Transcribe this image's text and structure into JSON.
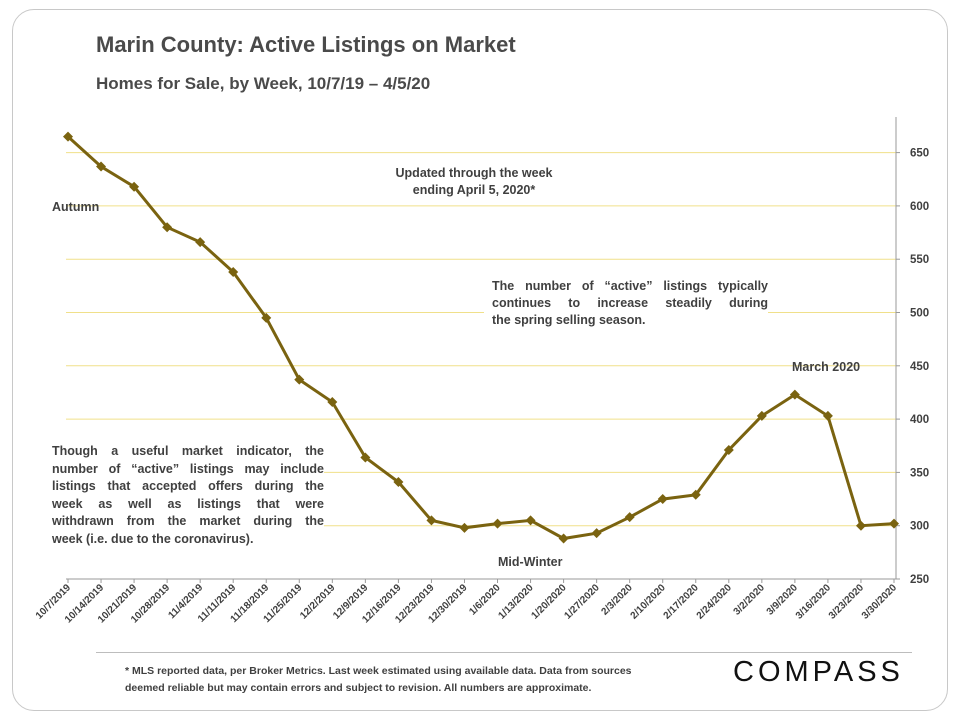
{
  "title": "Marin County: Active Listings on Market",
  "subtitle": "Homes for Sale, by Week, 10/7/19 – 4/5/20",
  "annotations": {
    "autumn": "Autumn",
    "updated_line1": "Updated through the week",
    "updated_line2": "ending April 5, 2020*",
    "spring_line1": "The number of “active” listings typically",
    "spring_line2": "continues to increase steadily during",
    "spring_line3": "the spring selling season.",
    "march": "March 2020",
    "midwinter": "Mid-Winter",
    "note_line1": "Though a useful market indicator, the",
    "note_line2": "number of “active” listings may include",
    "note_line3": "listings that accepted offers during the",
    "note_line4": "week as well as listings that were",
    "note_line5": "withdrawn from the market during the",
    "note_line6": "week (i.e. due to the coronavirus)."
  },
  "footnote_line1": "* MLS reported data, per Broker Metrics. Last week estimated using available data. Data from sources",
  "footnote_line2": "deemed reliable but may contain errors and subject to revision. All numbers are approximate.",
  "logo_text": "COMPASS",
  "chart_data": {
    "type": "line",
    "x": [
      "10/7/2019",
      "10/14/2019",
      "10/21/2019",
      "10/28/2019",
      "11/4/2019",
      "11/11/2019",
      "11/18/2019",
      "11/25/2019",
      "12/2/2019",
      "12/9/2019",
      "12/16/2019",
      "12/23/2019",
      "12/30/2019",
      "1/6/2020",
      "1/13/2020",
      "1/20/2020",
      "1/27/2020",
      "2/3/2020",
      "2/10/2020",
      "2/17/2020",
      "2/24/2020",
      "3/2/2020",
      "3/9/2020",
      "3/16/2020",
      "3/23/2020",
      "3/30/2020"
    ],
    "series": [
      {
        "values": [
          665,
          637,
          618,
          580,
          566,
          538,
          495,
          437,
          416,
          364,
          341,
          305,
          298,
          302,
          305,
          288,
          293,
          308,
          325,
          329,
          371,
          403,
          423,
          403,
          300,
          302
        ]
      }
    ],
    "ylim": [
      250,
      690
    ],
    "yticks": [
      250,
      300,
      350,
      400,
      450,
      500,
      550,
      600,
      650
    ],
    "y_axis_side": "right",
    "grid": true,
    "colors": {
      "line": "#7a6310",
      "grid": "#f0e08a",
      "axis": "#9a9a9a"
    }
  }
}
